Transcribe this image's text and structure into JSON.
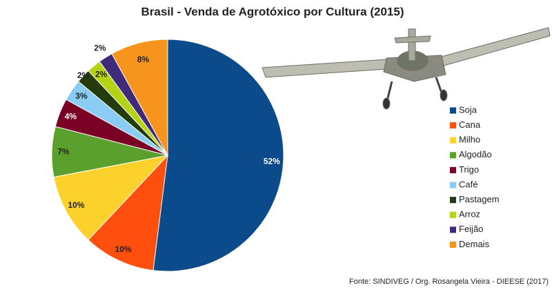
{
  "chart_data": {
    "type": "pie",
    "title": "Brasil - Venda de Agrotóxico por Cultura (2015)",
    "categories": [
      "Soja",
      "Cana",
      "Milho",
      "Algodão",
      "Trigo",
      "Café",
      "Pastagem",
      "Arroz",
      "Feijão",
      "Demais"
    ],
    "values": [
      52,
      10,
      10,
      7,
      4,
      3,
      2,
      2,
      2,
      8
    ],
    "value_labels": [
      "52%",
      "10%",
      "10%",
      "7%",
      "4%",
      "3%",
      "2%",
      "2%",
      "2%",
      "8%"
    ],
    "colors": [
      "#0b4a8b",
      "#ff4f0f",
      "#fdd12b",
      "#5b9f2d",
      "#7a0026",
      "#8acdf4",
      "#233b0e",
      "#b4d314",
      "#3f2b7a",
      "#f7941d"
    ],
    "legend": "right",
    "source": "Fonte: SINDIVEG / Org. Rosangela Vieira - DIEESE (2017)"
  }
}
